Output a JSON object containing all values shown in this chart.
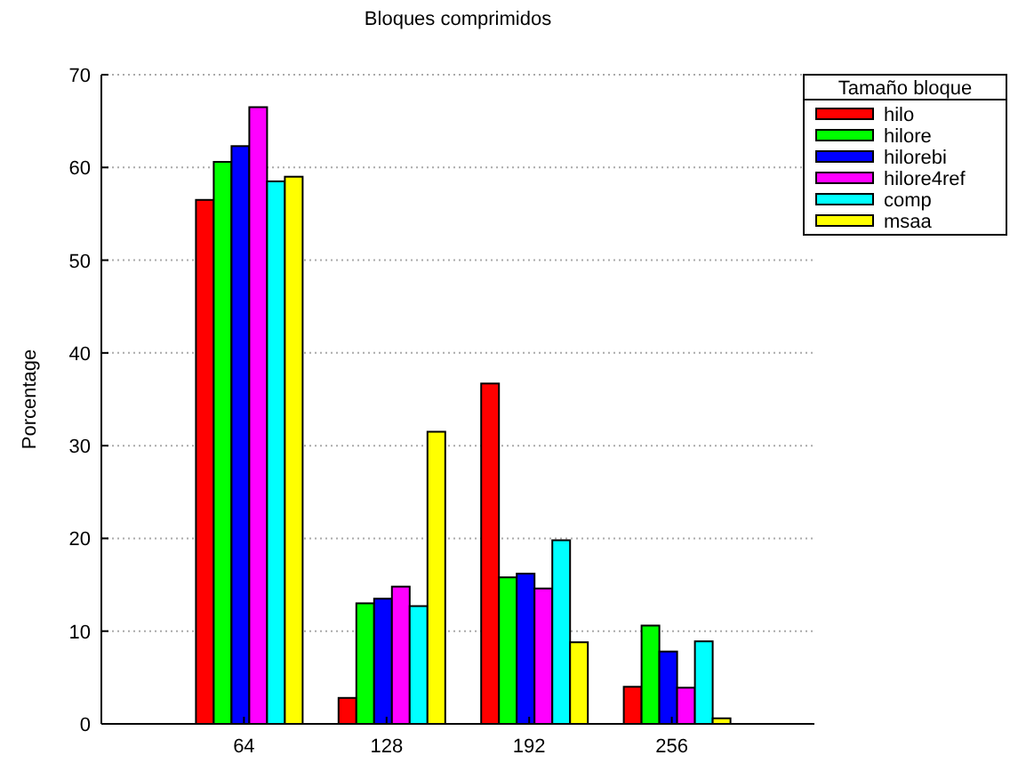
{
  "chart_data": {
    "type": "bar",
    "title": "Bloques comprimidos",
    "ylabel": "Porcentage",
    "legend_title": "Tamaño bloque",
    "categories": [
      "64",
      "128",
      "192",
      "256"
    ],
    "series": [
      {
        "name": "hilo",
        "color": "#ff0000",
        "values": [
          56.5,
          2.8,
          36.7,
          4
        ]
      },
      {
        "name": "hilore",
        "color": "#00ff00",
        "values": [
          60.6,
          13,
          15.8,
          10.6
        ]
      },
      {
        "name": "hilorebi",
        "color": "#0000ff",
        "values": [
          62.3,
          13.5,
          16.2,
          7.8
        ]
      },
      {
        "name": "hilore4ref",
        "color": "#ff00ff",
        "values": [
          66.5,
          14.8,
          14.6,
          3.9
        ]
      },
      {
        "name": "comp",
        "color": "#00ffff",
        "values": [
          58.5,
          12.7,
          19.8,
          8.9
        ]
      },
      {
        "name": "msaa",
        "color": "#ffff00",
        "values": [
          59,
          31.5,
          8.8,
          0.6
        ]
      }
    ],
    "ylim": [
      0,
      70
    ],
    "yticks": [
      0,
      10,
      20,
      30,
      40,
      50,
      60,
      70
    ],
    "grid": "y",
    "legend": "top right"
  }
}
